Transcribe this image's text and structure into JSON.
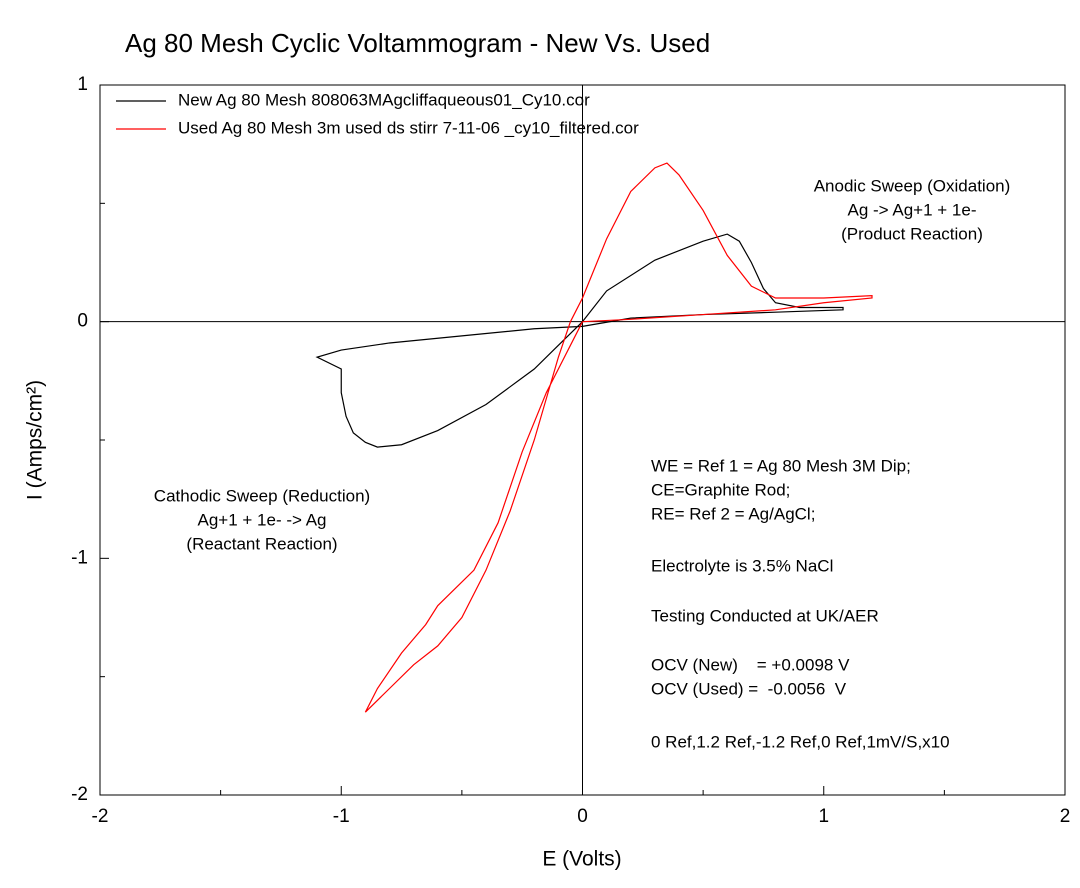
{
  "chart_data": {
    "type": "line",
    "title": "Ag 80 Mesh Cyclic Voltammogram - New Vs. Used",
    "xlabel": "E (Volts)",
    "ylabel": "I (Amps/cm²)",
    "xlim": [
      -2,
      2
    ],
    "ylim": [
      -2,
      1
    ],
    "xticks": [
      -2,
      -1,
      0,
      1,
      2
    ],
    "yticks": [
      -2,
      -1,
      0,
      1
    ],
    "xminorticks": [
      -1.5,
      -0.5,
      0.5,
      1.5
    ],
    "yminorticks": [
      -1.5,
      -0.5,
      0.5
    ],
    "zero_lines": true,
    "legend": "upper left",
    "series": [
      {
        "name": "New Ag 80 Mesh 808063MAgcliffaqueous01_Cy10.cor",
        "color": "#000000",
        "x": [
          0,
          0.1,
          0.3,
          0.5,
          0.6,
          0.65,
          0.7,
          0.75,
          0.8,
          0.9,
          1.08,
          1.08,
          0.8,
          0.5,
          0.2,
          0,
          -0.2,
          -0.4,
          -0.6,
          -0.8,
          -1.0,
          -1.1,
          -1.0,
          -1.0,
          -0.98,
          -0.95,
          -0.9,
          -0.85,
          -0.75,
          -0.6,
          -0.4,
          -0.2,
          -0.1,
          0
        ],
        "y": [
          0,
          0.13,
          0.26,
          0.34,
          0.37,
          0.34,
          0.25,
          0.14,
          0.08,
          0.06,
          0.06,
          0.05,
          0.04,
          0.03,
          0.015,
          -0.02,
          -0.03,
          -0.05,
          -0.07,
          -0.09,
          -0.12,
          -0.15,
          -0.2,
          -0.3,
          -0.4,
          -0.47,
          -0.51,
          -0.53,
          -0.52,
          -0.46,
          -0.35,
          -0.2,
          -0.1,
          0
        ]
      },
      {
        "name": "Used Ag 80 Mesh 3m used ds stirr 7-11-06 _cy10_filtered.cor",
        "color": "#ff0000",
        "x": [
          0,
          0.2,
          0.5,
          0.8,
          1.0,
          1.2,
          1.2,
          1.0,
          0.8,
          0.7,
          0.6,
          0.5,
          0.4,
          0.35,
          0.3,
          0.2,
          0.1,
          0,
          -0.05,
          -0.1,
          -0.2,
          -0.3,
          -0.4,
          -0.5,
          -0.6,
          -0.7,
          -0.8,
          -0.9,
          -0.85,
          -0.75,
          -0.65,
          -0.6,
          -0.55,
          -0.45,
          -0.35,
          -0.25,
          -0.15,
          -0.05,
          0
        ],
        "y": [
          0,
          0.01,
          0.03,
          0.05,
          0.08,
          0.1,
          0.11,
          0.1,
          0.1,
          0.15,
          0.28,
          0.47,
          0.62,
          0.67,
          0.65,
          0.55,
          0.35,
          0.1,
          0,
          -0.15,
          -0.5,
          -0.8,
          -1.05,
          -1.25,
          -1.37,
          -1.45,
          -1.55,
          -1.65,
          -1.55,
          -1.4,
          -1.28,
          -1.2,
          -1.15,
          -1.05,
          -0.85,
          -0.55,
          -0.3,
          -0.1,
          0
        ]
      }
    ],
    "annotations": [
      [
        "Anodic Sweep (Oxidation)",
        "Ag -> Ag+1 + 1e-",
        "(Product Reaction)"
      ],
      [
        "Cathodic Sweep (Reduction)",
        "Ag+1 + 1e- -> Ag",
        "(Reactant Reaction)"
      ],
      [
        "WE = Ref 1 = Ag 80 Mesh 3M Dip;",
        "CE=Graphite Rod;",
        "RE= Ref 2 = Ag/AgCl;"
      ],
      [
        "Electrolyte is 3.5% NaCl"
      ],
      [
        "Testing Conducted at UK/AER"
      ],
      [
        "OCV (New)    = +0.0098 V",
        "OCV (Used) =  -0.0056  V"
      ],
      [
        "0 Ref,1.2 Ref,-1.2 Ref,0 Ref,1mV/S,x10"
      ]
    ]
  }
}
